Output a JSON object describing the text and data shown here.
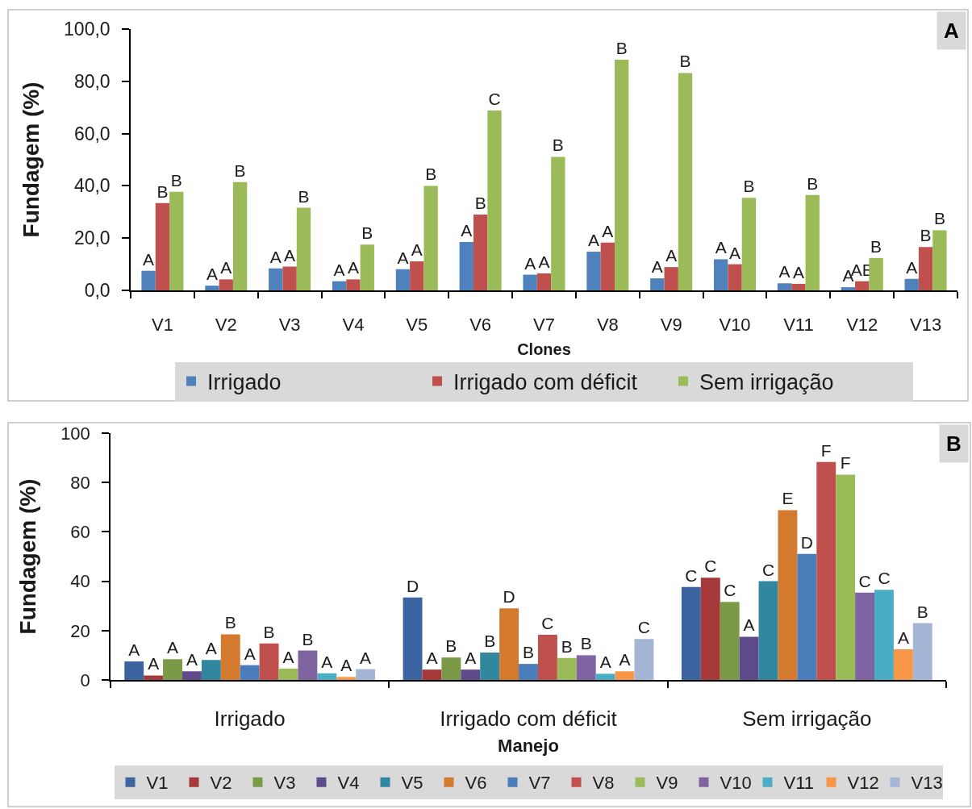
{
  "chart_data": [
    {
      "type": "bar",
      "xlabel": "Clones",
      "ylabel": "Fundagem (%)",
      "categories": [
        "V1",
        "V2",
        "V3",
        "V4",
        "V5",
        "V6",
        "V7",
        "V8",
        "V9",
        "V10",
        "V11",
        "V12",
        "V13"
      ],
      "series": [
        {
          "name": "Irrigado",
          "color": "#4f81bd",
          "values": [
            7.5,
            1.8,
            8.4,
            3.5,
            8.1,
            18.5,
            6.0,
            14.8,
            4.6,
            11.9,
            2.7,
            1.2,
            4.4
          ],
          "value_labels": [
            "A",
            "A",
            "A",
            "A",
            "A",
            "A",
            "A",
            "A",
            "A",
            "A",
            "A",
            "A",
            "A"
          ]
        },
        {
          "name": "Irrigado com déficit",
          "color": "#c0504d",
          "values": [
            33.4,
            4.2,
            9.1,
            4.2,
            11.1,
            29.0,
            6.5,
            18.3,
            8.9,
            10.0,
            2.5,
            3.5,
            16.6
          ],
          "value_labels": [
            "B",
            "A",
            "A",
            "A",
            "A",
            "B",
            "A",
            "A",
            "A",
            "A",
            "A",
            "AB",
            "B"
          ]
        },
        {
          "name": "Sem irrigação",
          "color": "#9bbb59",
          "values": [
            37.7,
            41.4,
            31.6,
            17.5,
            40.0,
            68.8,
            51.1,
            88.3,
            83.2,
            35.4,
            36.5,
            12.4,
            23.0
          ],
          "value_labels": [
            "B",
            "B",
            "B",
            "B",
            "B",
            "C",
            "B",
            "B",
            "B",
            "B",
            "B",
            "B",
            "B"
          ]
        }
      ],
      "ylim": [
        0,
        100
      ],
      "yticks": [
        {
          "value": 0,
          "label": "0,0"
        },
        {
          "value": 20,
          "label": "20,0"
        },
        {
          "value": 40,
          "label": "40,0"
        },
        {
          "value": 60,
          "label": "60,0"
        },
        {
          "value": 80,
          "label": "80,0"
        },
        {
          "value": 100,
          "label": "100,0"
        }
      ],
      "legend": "bottom",
      "annotations": [
        "A"
      ]
    },
    {
      "type": "bar",
      "xlabel": "Manejo",
      "ylabel": "Fundagem (%)",
      "categories": [
        "Irrigado",
        "Irrigado com déficit",
        "Sem irrigação"
      ],
      "series": [
        {
          "name": "V1",
          "color": "#3c64a0",
          "values": [
            7.5,
            33.4,
            37.7
          ],
          "value_labels": [
            "A",
            "D",
            "C"
          ]
        },
        {
          "name": "V2",
          "color": "#a5393a",
          "values": [
            1.8,
            4.2,
            41.4
          ],
          "value_labels": [
            "A",
            "A",
            "C"
          ]
        },
        {
          "name": "V3",
          "color": "#7a9a48",
          "values": [
            8.4,
            9.1,
            31.6
          ],
          "value_labels": [
            "A",
            "B",
            "C"
          ]
        },
        {
          "name": "V4",
          "color": "#5f4a8b",
          "values": [
            3.5,
            4.2,
            17.5
          ],
          "value_labels": [
            "A",
            "A",
            "A"
          ]
        },
        {
          "name": "V5",
          "color": "#31879e",
          "values": [
            8.1,
            11.1,
            40.0
          ],
          "value_labels": [
            "A",
            "B",
            "C"
          ]
        },
        {
          "name": "V6",
          "color": "#d47a2e",
          "values": [
            18.5,
            29.0,
            68.8
          ],
          "value_labels": [
            "B",
            "D",
            "E"
          ]
        },
        {
          "name": "V7",
          "color": "#4a7ebb",
          "values": [
            6.0,
            6.5,
            51.1
          ],
          "value_labels": [
            "A",
            "B",
            "D"
          ]
        },
        {
          "name": "V8",
          "color": "#c0504d",
          "values": [
            14.8,
            18.3,
            88.3
          ],
          "value_labels": [
            "B",
            "C",
            "F"
          ]
        },
        {
          "name": "V9",
          "color": "#9bbb59",
          "values": [
            4.6,
            8.9,
            83.2
          ],
          "value_labels": [
            "A",
            "B",
            "F"
          ]
        },
        {
          "name": "V10",
          "color": "#8064a2",
          "values": [
            11.9,
            10.0,
            35.4
          ],
          "value_labels": [
            "B",
            "B",
            "C"
          ]
        },
        {
          "name": "V11",
          "color": "#4bacc6",
          "values": [
            2.7,
            2.5,
            36.5
          ],
          "value_labels": [
            "A",
            "A",
            "C"
          ]
        },
        {
          "name": "V12",
          "color": "#f79646",
          "values": [
            1.2,
            3.5,
            12.4
          ],
          "value_labels": [
            "A",
            "A",
            "A"
          ]
        },
        {
          "name": "V13",
          "color": "#a5b5d6",
          "values": [
            4.4,
            16.6,
            23.0
          ],
          "value_labels": [
            "A",
            "C",
            "B"
          ]
        }
      ],
      "ylim": [
        0,
        100
      ],
      "yticks": [
        0,
        20,
        40,
        60,
        80,
        100
      ],
      "legend": "bottom",
      "annotations": [
        "B"
      ]
    }
  ]
}
